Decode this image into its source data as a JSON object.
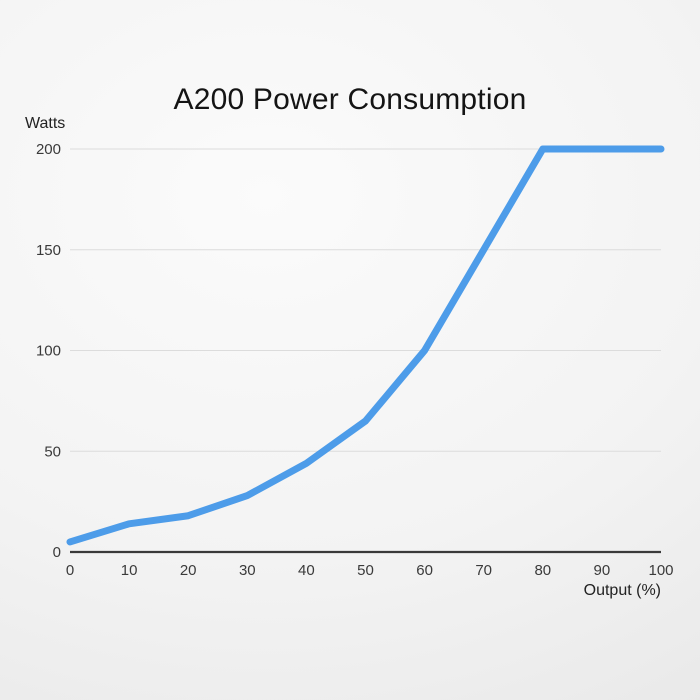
{
  "background": {
    "center": "#fbfbfb",
    "mid": "#f3f3f3",
    "edge": "#e7e7e7"
  },
  "chart_data": {
    "type": "line",
    "title": "A200 Power Consumption",
    "ylabel": "Watts",
    "xlabel": "Output (%)",
    "x": [
      0,
      10,
      20,
      30,
      40,
      50,
      60,
      70,
      80,
      90,
      100
    ],
    "series": [
      {
        "name": "A200 power consumption",
        "values": [
          5,
          14,
          18,
          28,
          44,
          65,
          100,
          150,
          200,
          200,
          200
        ]
      }
    ],
    "xlim": [
      0,
      100
    ],
    "ylim": [
      0,
      200
    ],
    "xticks": [
      0,
      10,
      20,
      30,
      40,
      50,
      60,
      70,
      80,
      90,
      100
    ],
    "yticks": [
      0,
      50,
      100,
      150,
      200
    ],
    "grid": "horizontal",
    "legend_position": "none",
    "colors": {
      "line": "#4d9ce9",
      "grid": "#dcdcdc",
      "axis": "#3a3a3a",
      "tick_text": "#3a3a3a",
      "title_text": "#141414",
      "axis_title_text": "#222222"
    }
  }
}
